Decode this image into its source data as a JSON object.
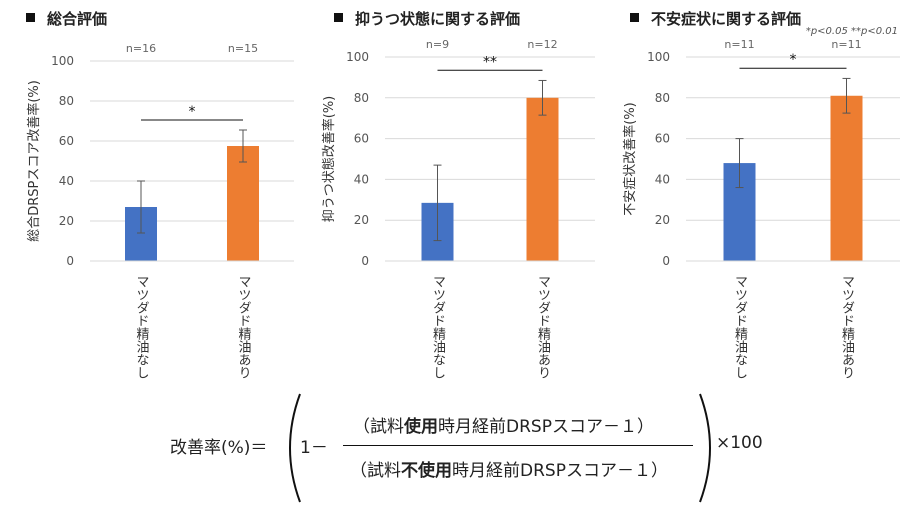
{
  "significance_note": {
    "single": "*",
    "single_text": "p<0.05",
    "double": "**",
    "double_text": "p<0.01"
  },
  "chart_data": [
    {
      "type": "bar",
      "title": "総合評価",
      "ylabel": "総合DRSPスコア改善率(%)",
      "ylim": [
        0,
        100
      ],
      "yticks": [
        0,
        20,
        40,
        60,
        80,
        100
      ],
      "categories": [
        "マツダド精油なし",
        "マツダド精油あり"
      ],
      "n_labels": [
        "n=16",
        "n=15"
      ],
      "values": [
        27,
        57.5
      ],
      "errors": [
        13,
        8
      ],
      "colors": [
        "#4472C4",
        "#ED7D31"
      ],
      "significance": "*"
    },
    {
      "type": "bar",
      "title": "抑うつ状態に関する評価",
      "ylabel": "抑うつ状態改善率(%)",
      "ylim": [
        0,
        100
      ],
      "yticks": [
        0,
        20,
        40,
        60,
        80,
        100
      ],
      "categories": [
        "マツダド精油なし",
        "マツダド精油あり"
      ],
      "n_labels": [
        "n=9",
        "n=12"
      ],
      "values": [
        28.5,
        80
      ],
      "errors": [
        18.5,
        8.5
      ],
      "colors": [
        "#4472C4",
        "#ED7D31"
      ],
      "significance": "**"
    },
    {
      "type": "bar",
      "title": "不安症状に関する評価",
      "ylabel": "不安症状改善率(%)",
      "ylim": [
        0,
        100
      ],
      "yticks": [
        0,
        20,
        40,
        60,
        80,
        100
      ],
      "categories": [
        "マツダド精油なし",
        "マツダド精油あり"
      ],
      "n_labels": [
        "n=11",
        "n=11"
      ],
      "values": [
        48,
        81
      ],
      "errors": [
        12,
        8.5
      ],
      "colors": [
        "#4472C4",
        "#ED7D31"
      ],
      "significance": "*"
    }
  ],
  "formula": {
    "lhs": "改善率(%)＝",
    "one_minus": "1－",
    "numerator_pre": "（試料",
    "numerator_bold": "使用",
    "numerator_post": "時月経前DRSPスコア－１）",
    "denominator_pre": "（試料",
    "denominator_bold": "不使用",
    "denominator_post": "時月経前DRSPスコア－１）",
    "times": "×100"
  }
}
